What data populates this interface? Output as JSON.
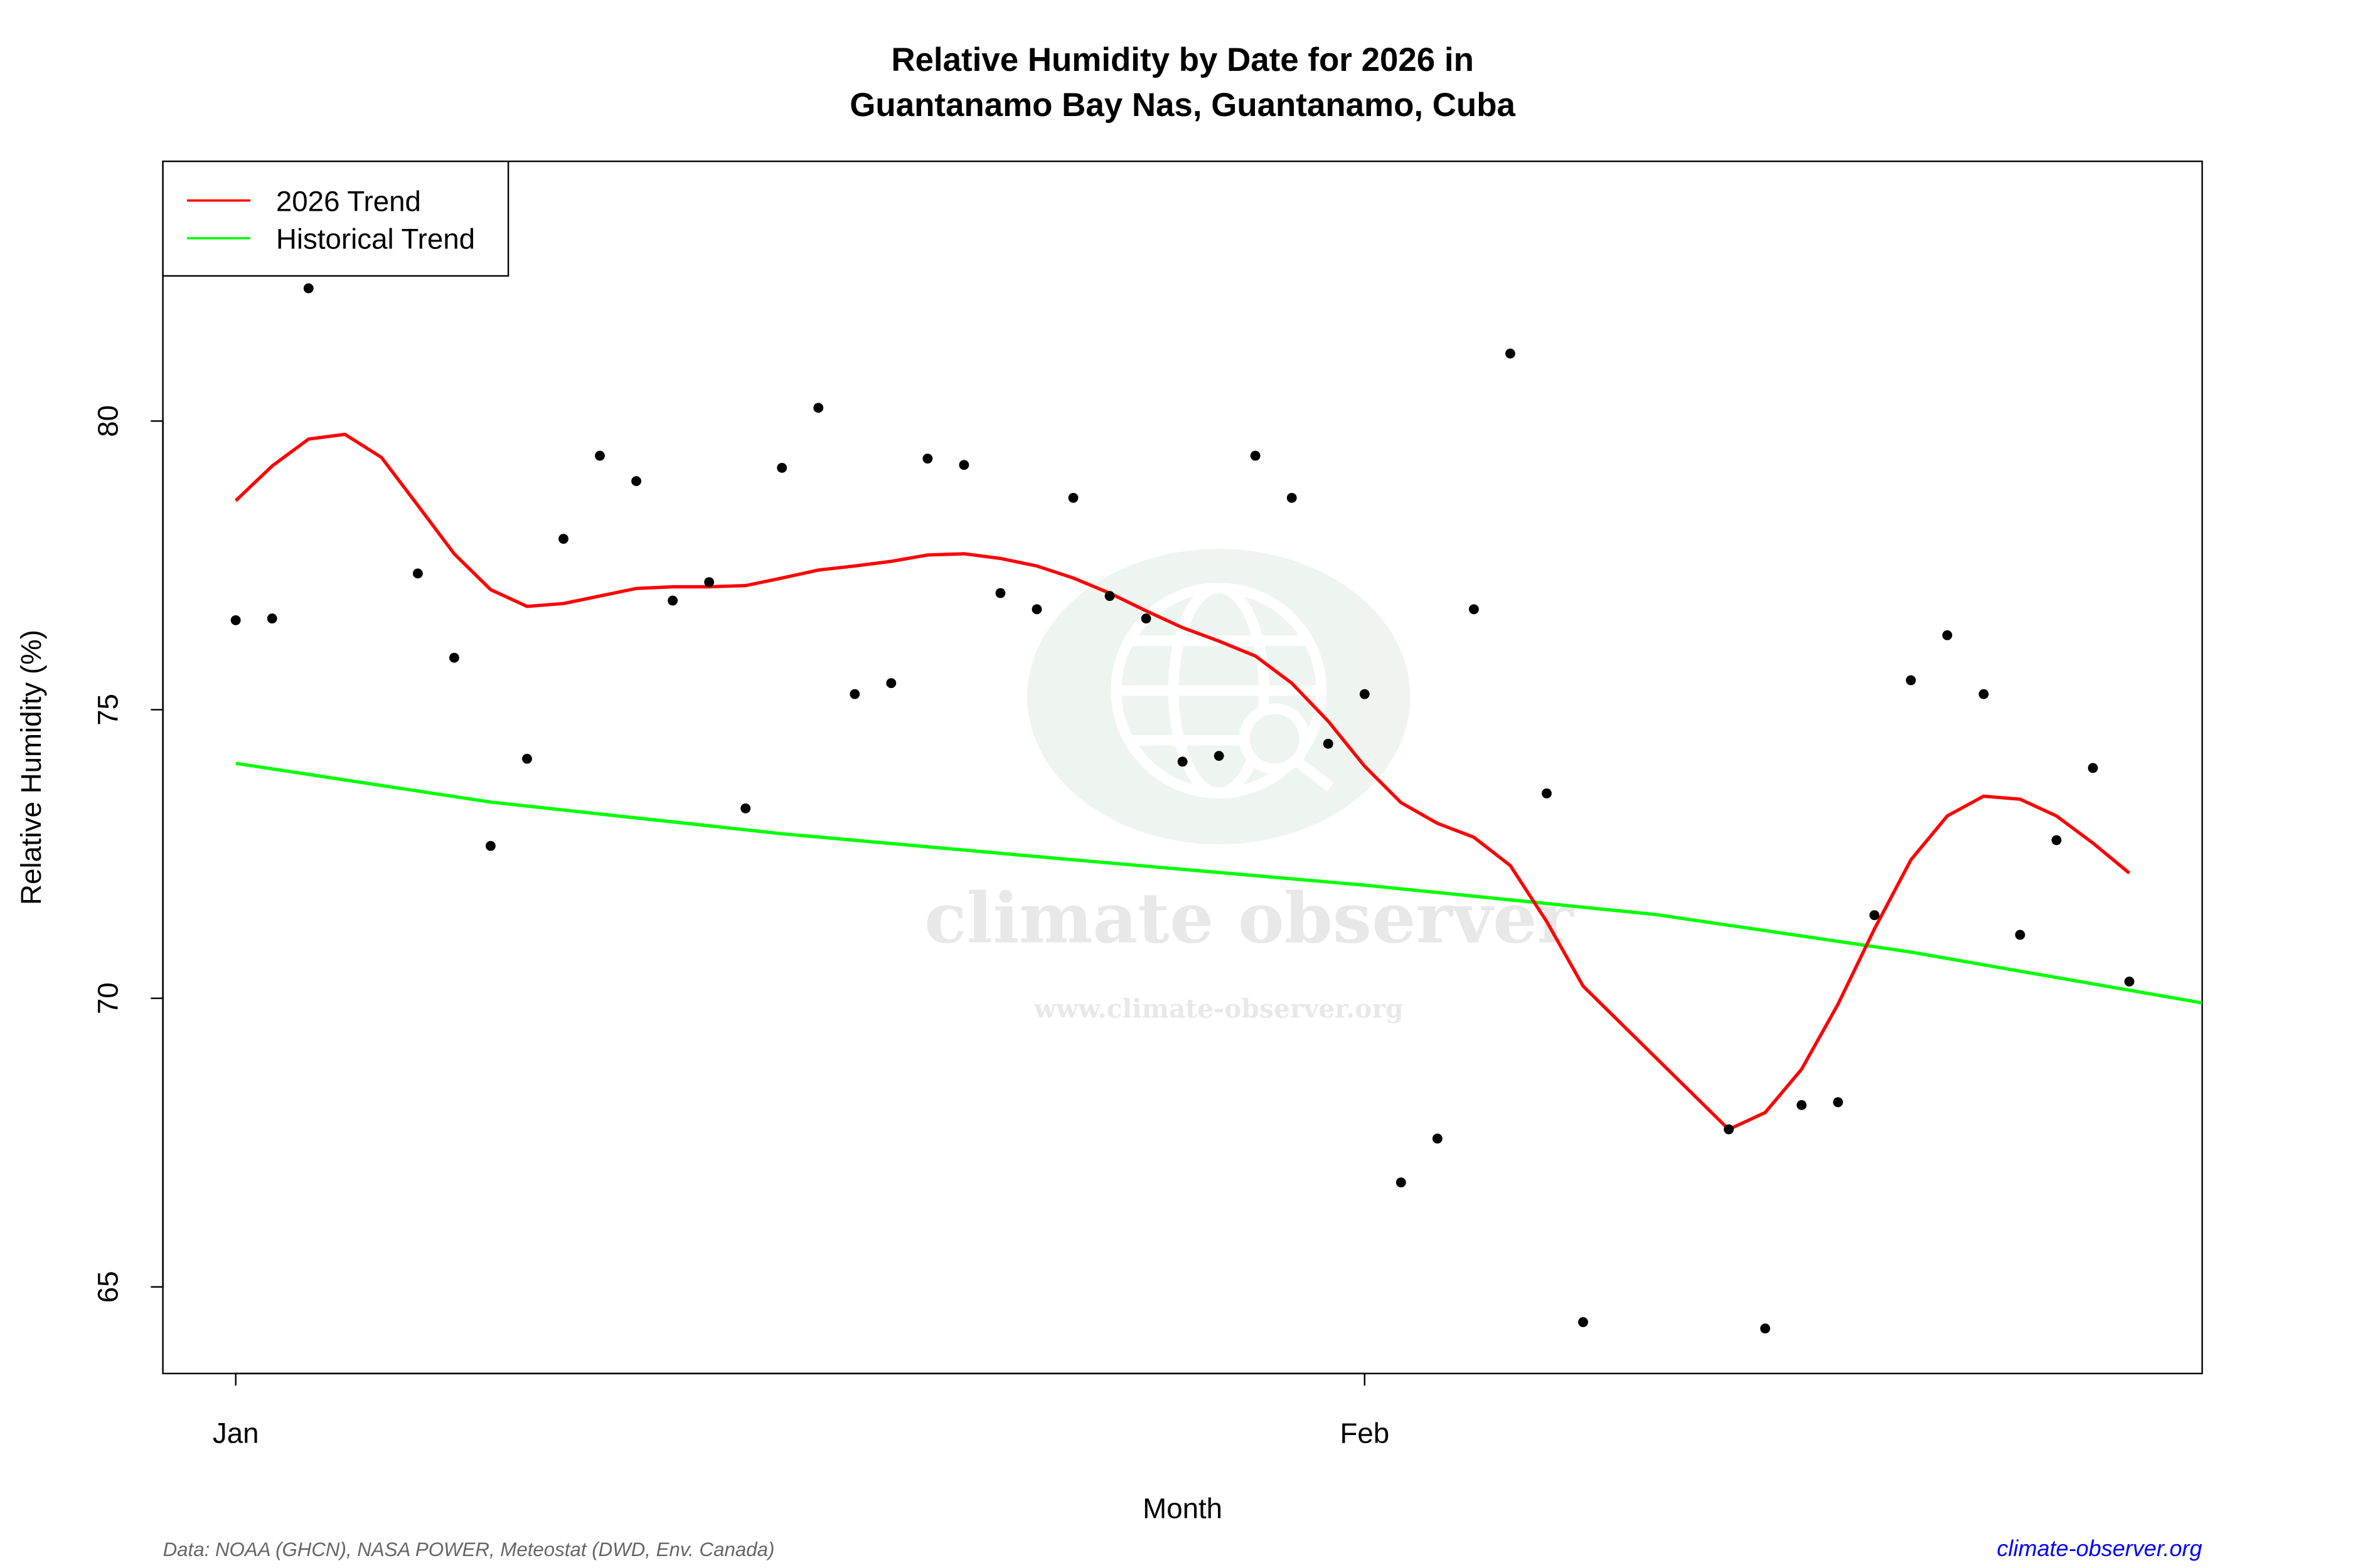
{
  "chart_data": {
    "type": "scatter",
    "title": "Relative Humidity by Date for 2026 in",
    "subtitle": "Guantanamo Bay Nas, Guantanamo, Cuba",
    "xlabel": "Month",
    "ylabel": "Relative Humidity (%)",
    "xlim": [
      "2025-12-30",
      "2026-02-24"
    ],
    "ylim": [
      63.5,
      84.5
    ],
    "x_ticks": [
      {
        "date": "2026-01-01",
        "label": "Jan"
      },
      {
        "date": "2026-02-01",
        "label": "Feb"
      }
    ],
    "y_ticks": [
      65,
      70,
      75,
      80
    ],
    "grid": false,
    "legend_position": "top-left",
    "colors": {
      "points": "#000000",
      "trend_2026": "#ff0000",
      "historical": "#00ff00",
      "source_link": "#0000ff"
    },
    "points": [
      [
        "2026-01-01",
        76.55
      ],
      [
        "2026-01-02",
        76.58
      ],
      [
        "2026-01-03",
        82.3
      ],
      [
        "2026-01-06",
        77.36
      ],
      [
        "2026-01-07",
        75.9
      ],
      [
        "2026-01-08",
        72.64
      ],
      [
        "2026-01-09",
        74.15
      ],
      [
        "2026-01-10",
        77.96
      ],
      [
        "2026-01-11",
        79.4
      ],
      [
        "2026-01-12",
        78.96
      ],
      [
        "2026-01-13",
        76.89
      ],
      [
        "2026-01-14",
        77.21
      ],
      [
        "2026-01-15",
        73.29
      ],
      [
        "2026-01-16",
        79.19
      ],
      [
        "2026-01-17",
        80.23
      ],
      [
        "2026-01-18",
        75.27
      ],
      [
        "2026-01-19",
        75.46
      ],
      [
        "2026-01-20",
        79.35
      ],
      [
        "2026-01-21",
        79.24
      ],
      [
        "2026-01-22",
        77.02
      ],
      [
        "2026-01-23",
        76.74
      ],
      [
        "2026-01-24",
        78.67
      ],
      [
        "2026-01-25",
        76.97
      ],
      [
        "2026-01-26",
        76.58
      ],
      [
        "2026-01-27",
        74.1
      ],
      [
        "2026-01-28",
        74.2
      ],
      [
        "2026-01-29",
        79.4
      ],
      [
        "2026-01-30",
        78.67
      ],
      [
        "2026-01-31",
        74.41
      ],
      [
        "2026-02-01",
        75.27
      ],
      [
        "2026-02-02",
        66.81
      ],
      [
        "2026-02-03",
        67.57
      ],
      [
        "2026-02-04",
        76.74
      ],
      [
        "2026-02-05",
        81.17
      ],
      [
        "2026-02-06",
        73.55
      ],
      [
        "2026-02-07",
        64.39
      ],
      [
        "2026-02-11",
        67.73
      ],
      [
        "2026-02-12",
        64.28
      ],
      [
        "2026-02-13",
        68.15
      ],
      [
        "2026-02-14",
        68.2
      ],
      [
        "2026-02-15",
        71.44
      ],
      [
        "2026-02-16",
        75.51
      ],
      [
        "2026-02-17",
        76.29
      ],
      [
        "2026-02-18",
        75.27
      ],
      [
        "2026-02-19",
        71.1
      ],
      [
        "2026-02-20",
        72.74
      ],
      [
        "2026-02-21",
        73.99
      ],
      [
        "2026-02-22",
        70.29
      ]
    ],
    "series": [
      {
        "name": "2026 Trend",
        "color": "#ff0000",
        "values": [
          [
            "2026-01-01",
            78.62
          ],
          [
            "2026-01-02",
            79.22
          ],
          [
            "2026-01-03",
            79.69
          ],
          [
            "2026-01-04",
            79.77
          ],
          [
            "2026-01-05",
            79.37
          ],
          [
            "2026-01-06",
            78.54
          ],
          [
            "2026-01-07",
            77.7
          ],
          [
            "2026-01-08",
            77.08
          ],
          [
            "2026-01-09",
            76.79
          ],
          [
            "2026-01-10",
            76.84
          ],
          [
            "2026-01-11",
            76.97
          ],
          [
            "2026-01-12",
            77.1
          ],
          [
            "2026-01-13",
            77.13
          ],
          [
            "2026-01-14",
            77.13
          ],
          [
            "2026-01-15",
            77.15
          ],
          [
            "2026-01-16",
            77.28
          ],
          [
            "2026-01-17",
            77.42
          ],
          [
            "2026-01-18",
            77.49
          ],
          [
            "2026-01-19",
            77.57
          ],
          [
            "2026-01-20",
            77.68
          ],
          [
            "2026-01-21",
            77.7
          ],
          [
            "2026-01-22",
            77.62
          ],
          [
            "2026-01-23",
            77.49
          ],
          [
            "2026-01-24",
            77.28
          ],
          [
            "2026-01-25",
            77.02
          ],
          [
            "2026-01-26",
            76.71
          ],
          [
            "2026-01-27",
            76.42
          ],
          [
            "2026-01-28",
            76.19
          ],
          [
            "2026-01-29",
            75.93
          ],
          [
            "2026-01-30",
            75.46
          ],
          [
            "2026-01-31",
            74.8
          ],
          [
            "2026-02-01",
            74.02
          ],
          [
            "2026-02-02",
            73.39
          ],
          [
            "2026-02-03",
            73.03
          ],
          [
            "2026-02-04",
            72.79
          ],
          [
            "2026-02-05",
            72.3
          ],
          [
            "2026-02-06",
            71.33
          ],
          [
            "2026-02-07",
            70.21
          ],
          [
            "2026-02-11",
            67.73
          ],
          [
            "2026-02-12",
            68.02
          ],
          [
            "2026-02-13",
            68.77
          ],
          [
            "2026-02-14",
            69.9
          ],
          [
            "2026-02-15",
            71.2
          ],
          [
            "2026-02-16",
            72.4
          ],
          [
            "2026-02-17",
            73.16
          ],
          [
            "2026-02-18",
            73.5
          ],
          [
            "2026-02-19",
            73.45
          ],
          [
            "2026-02-20",
            73.16
          ],
          [
            "2026-02-21",
            72.69
          ],
          [
            "2026-02-22",
            72.17
          ]
        ]
      },
      {
        "name": "Historical Trend",
        "color": "#00ff00",
        "values": [
          [
            "2026-01-01",
            74.07
          ],
          [
            "2026-01-08",
            73.4
          ],
          [
            "2026-01-16",
            72.85
          ],
          [
            "2026-01-24",
            72.4
          ],
          [
            "2026-02-01",
            71.96
          ],
          [
            "2026-02-09",
            71.45
          ],
          [
            "2026-02-16",
            70.8
          ],
          [
            "2026-02-24",
            69.92
          ]
        ]
      }
    ]
  },
  "watermark": {
    "brand": "climate observer",
    "url": "www.climate-observer.org"
  },
  "footer": {
    "source": "Data: NOAA (GHCN), NASA POWER, Meteostat (DWD, Env. Canada)",
    "link": "climate-observer.org"
  }
}
